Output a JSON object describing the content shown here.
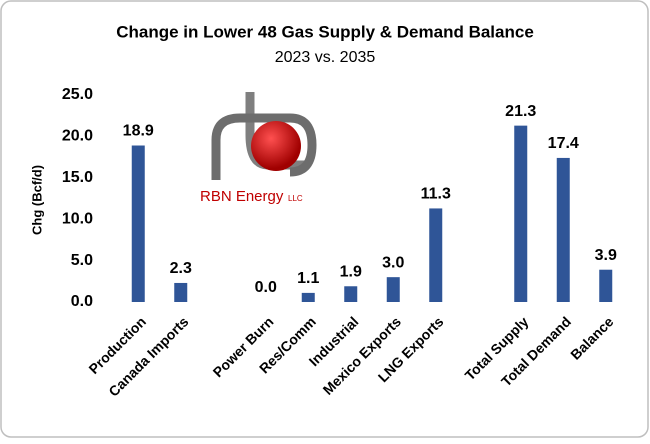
{
  "chart_data": {
    "type": "bar",
    "title": "Change in Lower 48 Gas Supply & Demand Balance",
    "subtitle": "2023 vs. 2035",
    "y_label": "Chg (Bcf/d)",
    "categories": [
      "Production",
      "Canada Imports",
      null,
      "Power Burn",
      "Res/Comm",
      "Industrial",
      "Mexico Exports",
      "LNG Exports",
      null,
      "Total Supply",
      "Total Demand",
      "Balance"
    ],
    "values": [
      18.9,
      2.3,
      null,
      0,
      1.1,
      1.9,
      3,
      11.3,
      null,
      21.3,
      17.4,
      3.9
    ],
    "value_labels": [
      "18.9",
      "2.3",
      null,
      "0.0",
      "1.1",
      "1.9",
      "3.0",
      "11.3",
      null,
      "21.3",
      "17.4",
      "3.9"
    ],
    "color": "#2f5597",
    "ylim": [
      0,
      25
    ],
    "yticks": [
      {
        "value": 0,
        "label": "0.0"
      },
      {
        "value": 5,
        "label": "5.0"
      },
      {
        "value": 10,
        "label": "10.0"
      },
      {
        "value": 15,
        "label": "15.0"
      },
      {
        "value": 20,
        "label": "20.0"
      },
      {
        "value": 25,
        "label": "25.0"
      }
    ],
    "grid": false
  },
  "logo": {
    "name": "RBN Energy",
    "suffix": "LLC"
  }
}
